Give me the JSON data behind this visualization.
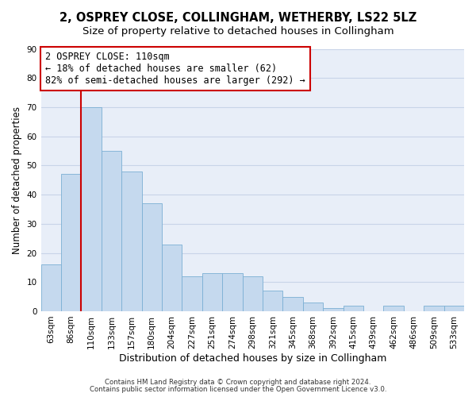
{
  "title": "2, OSPREY CLOSE, COLLINGHAM, WETHERBY, LS22 5LZ",
  "subtitle": "Size of property relative to detached houses in Collingham",
  "xlabel": "Distribution of detached houses by size in Collingham",
  "ylabel": "Number of detached properties",
  "bar_labels": [
    "63sqm",
    "86sqm",
    "110sqm",
    "133sqm",
    "157sqm",
    "180sqm",
    "204sqm",
    "227sqm",
    "251sqm",
    "274sqm",
    "298sqm",
    "321sqm",
    "345sqm",
    "368sqm",
    "392sqm",
    "415sqm",
    "439sqm",
    "462sqm",
    "486sqm",
    "509sqm",
    "533sqm"
  ],
  "bar_values": [
    16,
    47,
    70,
    55,
    48,
    37,
    23,
    12,
    13,
    13,
    12,
    7,
    5,
    3,
    1,
    2,
    0,
    2,
    0,
    2,
    2
  ],
  "bar_color": "#c5d9ee",
  "bar_edge_color": "#7bafd4",
  "highlight_index": 2,
  "highlight_color": "#cc0000",
  "ylim": [
    0,
    90
  ],
  "yticks": [
    0,
    10,
    20,
    30,
    40,
    50,
    60,
    70,
    80,
    90
  ],
  "annotation_line1": "2 OSPREY CLOSE: 110sqm",
  "annotation_line2": "← 18% of detached houses are smaller (62)",
  "annotation_line3": "82% of semi-detached houses are larger (292) →",
  "footer1": "Contains HM Land Registry data © Crown copyright and database right 2024.",
  "footer2": "Contains public sector information licensed under the Open Government Licence v3.0.",
  "plot_bg_color": "#e8eef8",
  "fig_bg_color": "#ffffff",
  "grid_color": "#c8d4e8",
  "title_fontsize": 10.5,
  "subtitle_fontsize": 9.5,
  "annot_fontsize": 8.5,
  "xlabel_fontsize": 9,
  "ylabel_fontsize": 8.5,
  "tick_fontsize": 7.5
}
